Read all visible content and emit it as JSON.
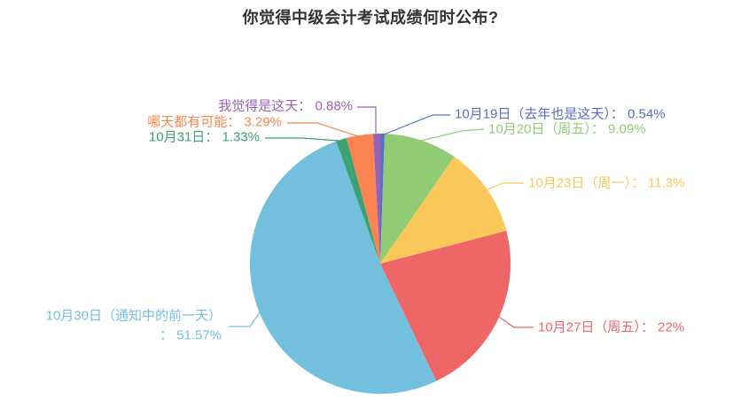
{
  "chart_data": {
    "type": "pie",
    "title": "你觉得中级会计考试成绩何时公布?",
    "title_color": "#333333",
    "legend_position": "none",
    "start_angle": "top",
    "direction": "clockwise",
    "label_separator": "： ",
    "slices": [
      {
        "label": "10月19日（去年也是这天）",
        "value": 0.54,
        "display": "0.54%",
        "color": "#5470c6"
      },
      {
        "label": "10月20日（周五）",
        "value": 9.09,
        "display": "9.09%",
        "color": "#91cc75"
      },
      {
        "label": "10月23日（周一）",
        "value": 11.3,
        "display": "11.3%",
        "color": "#fac858"
      },
      {
        "label": "10月27日（周五）",
        "value": 22,
        "display": "22%",
        "color": "#ee6666"
      },
      {
        "label": "10月30日（通知中的前一天）",
        "value": 51.57,
        "display": "51.57%",
        "color": "#73c0de"
      },
      {
        "label": "10月31日",
        "value": 1.33,
        "display": "1.33%",
        "color": "#3ba272"
      },
      {
        "label": "哪天都有可能",
        "value": 3.29,
        "display": "3.29%",
        "color": "#fc8452"
      },
      {
        "label": "我觉得是这天",
        "value": 0.88,
        "display": "0.88%",
        "color": "#9a60b4"
      }
    ]
  }
}
